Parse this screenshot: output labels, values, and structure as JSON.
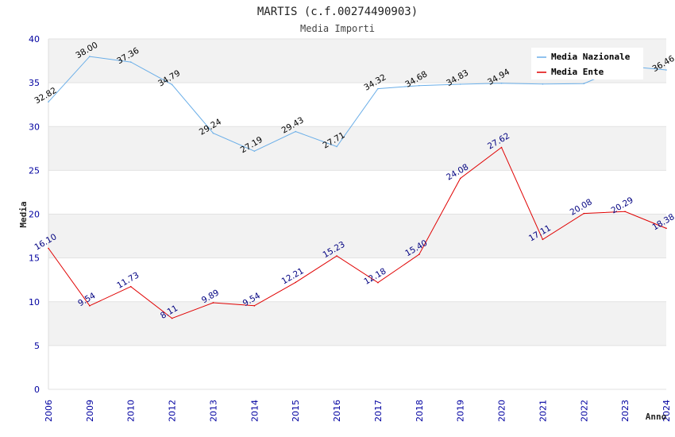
{
  "chart_data": {
    "type": "line",
    "title": "MARTIS (c.f.00274490903)",
    "subtitle": "Media Importi",
    "xlabel": "Anno",
    "ylabel": "Media",
    "ylim": [
      0,
      40
    ],
    "yticks": [
      0,
      5,
      10,
      15,
      20,
      25,
      30,
      35,
      40
    ],
    "categories": [
      "2006",
      "2009",
      "2010",
      "2012",
      "2013",
      "2014",
      "2015",
      "2016",
      "2017",
      "2018",
      "2019",
      "2020",
      "2021",
      "2022",
      "2023",
      "2024"
    ],
    "legend_position": "top-right",
    "series": [
      {
        "name": "Media Nazionale",
        "color": "#6aaee8",
        "label_color": "#000000",
        "values": [
          32.82,
          38.0,
          37.36,
          34.79,
          29.24,
          27.19,
          29.43,
          27.71,
          34.32,
          34.68,
          34.83,
          34.94,
          34.85,
          34.9,
          36.9,
          36.46
        ],
        "labels": [
          "32.82",
          "38.00",
          "37.36",
          "34.79",
          "29.24",
          "27.19",
          "29.43",
          "27.71",
          "34.32",
          "34.68",
          "34.83",
          "34.94",
          "",
          "",
          "",
          "36.46"
        ]
      },
      {
        "name": "Media Ente",
        "color": "#e00000",
        "label_color": "#000080",
        "values": [
          16.1,
          9.54,
          11.73,
          8.11,
          9.89,
          9.54,
          12.21,
          15.23,
          12.18,
          15.4,
          24.08,
          27.62,
          17.11,
          20.08,
          20.29,
          18.38
        ],
        "labels": [
          "16.10",
          "9.54",
          "11.73",
          "8.11",
          "9.89",
          "9.54",
          "12.21",
          "15.23",
          "12.18",
          "15.40",
          "24.08",
          "27.62",
          "17.11",
          "20.08",
          "20.29",
          "18.38"
        ]
      }
    ]
  }
}
